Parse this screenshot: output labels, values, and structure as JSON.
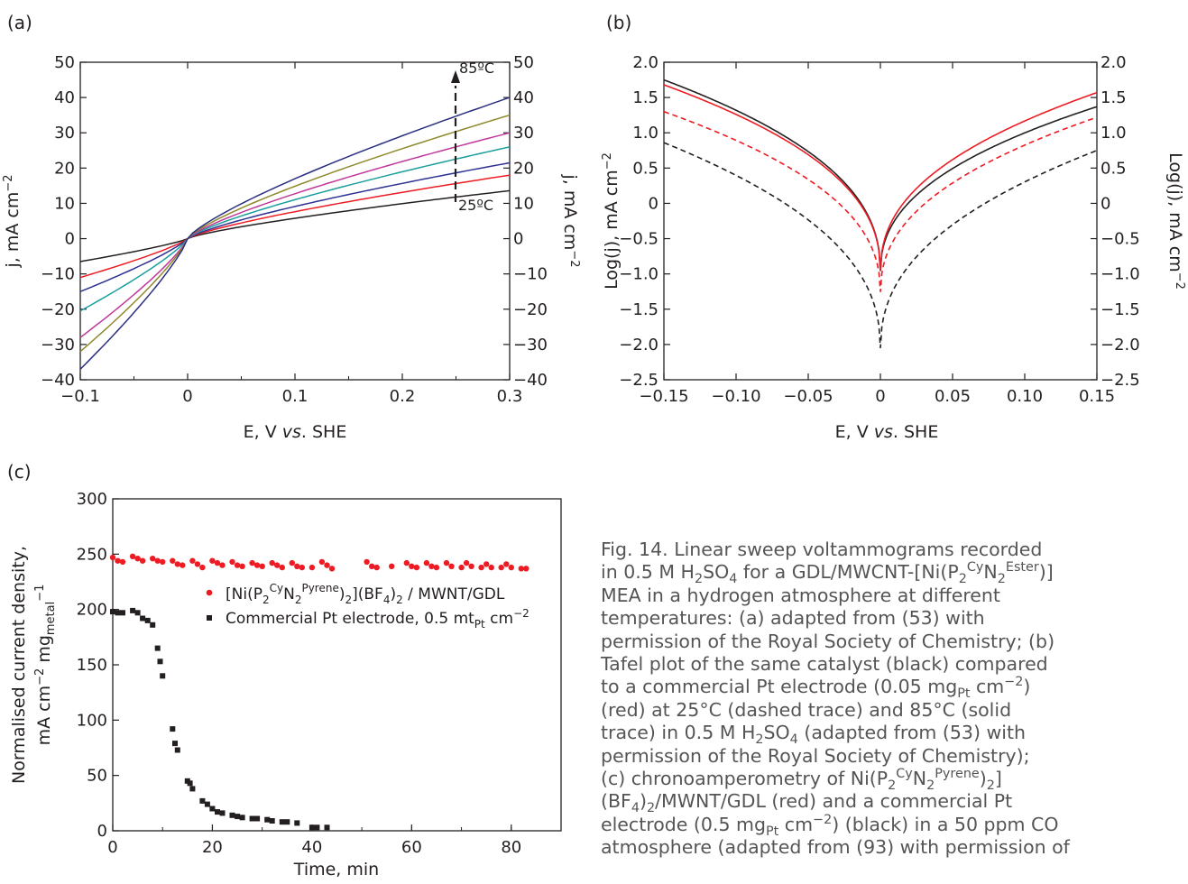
{
  "chart_data": [
    {
      "type": "line",
      "panel_label": "(a)",
      "xlabel": "E, V vs. SHE",
      "ylabel_left": "j, mA cm−2",
      "ylabel_right": "j, mA cm−2",
      "xlim": [
        -0.1,
        0.3
      ],
      "ylim": [
        -40,
        50
      ],
      "xticks": [
        "−0.1",
        "0",
        "0.1",
        "0.2",
        "0.3"
      ],
      "yticks": [
        "50",
        "40",
        "30",
        "20",
        "10",
        "0",
        "−10",
        "−20",
        "−30",
        "−40"
      ],
      "annotations": {
        "top": "85ºC",
        "bottom": "25ºC",
        "arrow_x": 0.25
      },
      "series": [
        {
          "color": "#231f20",
          "values_at_xmin": -6.5,
          "values_at_xmax": 13.6
        },
        {
          "color": "#ed1c24",
          "values_at_xmin": -11,
          "values_at_xmax": 18
        },
        {
          "color": "#2e3192",
          "values_at_xmin": -15,
          "values_at_xmax": 21.5
        },
        {
          "color": "#1a9e9e",
          "values_at_xmin": -20.5,
          "values_at_xmax": 26
        },
        {
          "color": "#c1399b",
          "values_at_xmin": -28,
          "values_at_xmax": 30
        },
        {
          "color": "#8e8a2c",
          "values_at_xmin": -32,
          "values_at_xmax": 35
        },
        {
          "color": "#2b2f80",
          "values_at_xmin": -37,
          "values_at_xmax": 40
        }
      ]
    },
    {
      "type": "line",
      "panel_label": "(b)",
      "xlabel": "E, V vs. SHE",
      "ylabel_left": "Log(j), mA cm−2",
      "ylabel_right": "Log(j), mA cm−2",
      "xlim": [
        -0.15,
        0.15
      ],
      "ylim": [
        -2.5,
        2.0
      ],
      "xticks": [
        "−0.15",
        "−0.10",
        "−0.05",
        "0",
        "0.05",
        "0.10",
        "0.15"
      ],
      "yticks": [
        "2.0",
        "1.5",
        "1.0",
        "0.5",
        "0",
        "−0.5",
        "−1.0",
        "−1.5",
        "−2.0",
        "−2.5"
      ],
      "series": [
        {
          "color": "#231f20",
          "style": "solid",
          "left_end": 1.75,
          "right_end": 1.37,
          "min": -1.0
        },
        {
          "color": "#ed1c24",
          "style": "solid",
          "left_end": 1.68,
          "right_end": 1.57,
          "min": -1.0
        },
        {
          "color": "#ed1c24",
          "style": "dashed",
          "left_end": 1.3,
          "right_end": 1.22,
          "min": -1.3
        },
        {
          "color": "#231f20",
          "style": "dashed",
          "left_end": 0.86,
          "right_end": 0.75,
          "min": -2.1
        }
      ]
    },
    {
      "type": "scatter",
      "panel_label": "(c)",
      "xlabel": "Time, min",
      "ylabel_line1": "Normalised current density,",
      "ylabel_line2": "mA cm−2 mgmetal−1",
      "xlim": [
        0,
        90
      ],
      "ylim": [
        0,
        300
      ],
      "xticks": [
        "0",
        "20",
        "40",
        "60",
        "80"
      ],
      "yticks": [
        "300",
        "250",
        "200",
        "150",
        "100",
        "50",
        "0"
      ],
      "legend": [
        "[Ni(P2CyN2Pyrene)2](BF4)2 / MWNT/GDL",
        "Commercial Pt electrode, 0.5 mtPt cm−2"
      ],
      "series": [
        {
          "color": "#ed1c24",
          "marker": "circle",
          "x": [
            0,
            1,
            2,
            4,
            5,
            6,
            8,
            9,
            10,
            12,
            13,
            14,
            16,
            17,
            18,
            20,
            21,
            22,
            24,
            25,
            26,
            28,
            29,
            30,
            32,
            33,
            34,
            36,
            37,
            38,
            40,
            42,
            43,
            44,
            51,
            52,
            53,
            56,
            59,
            60,
            61,
            63,
            64,
            65,
            67,
            68,
            70,
            71,
            72,
            74,
            75,
            76,
            78,
            79,
            80,
            82,
            83
          ],
          "y": [
            247,
            244,
            243,
            248,
            246,
            244,
            246,
            244,
            243,
            244,
            241,
            240,
            244,
            241,
            238,
            244,
            242,
            240,
            243,
            240,
            239,
            242,
            240,
            239,
            242,
            240,
            238,
            242,
            239,
            238,
            238,
            243,
            240,
            237,
            243,
            239,
            238,
            239,
            242,
            239,
            238,
            242,
            239,
            238,
            242,
            239,
            238,
            242,
            239,
            238,
            241,
            238,
            238,
            241,
            238,
            237,
            237
          ]
        },
        {
          "color": "#231f20",
          "marker": "square",
          "x": [
            0,
            1,
            2,
            4,
            5,
            6,
            7,
            8,
            9,
            9.5,
            10,
            12,
            12.5,
            13,
            15,
            15.5,
            16,
            18,
            19,
            20,
            21,
            22,
            24,
            25,
            26,
            28,
            29,
            31,
            32,
            34,
            35,
            37,
            40,
            41,
            43
          ],
          "y": [
            198,
            197,
            197,
            199,
            197,
            192,
            190,
            186,
            165,
            153,
            140,
            92,
            79,
            73,
            45,
            43,
            38,
            27,
            24,
            20,
            17,
            16,
            14,
            13,
            12,
            11,
            11,
            10,
            9,
            8,
            8,
            7,
            3,
            3,
            3
          ]
        }
      ]
    }
  ],
  "caption": {
    "fig": "Fig. 14.",
    "l1b": "Linear sweep voltammograms recorded",
    "l2a": "in 0.5 M H",
    "l2b": "SO",
    "l2c": " for a GDL/MWCNT-[Ni(P",
    "l2d": "N",
    "l2e": ")]",
    "l3": "MEA in a hydrogen atmosphere at different",
    "l4": "temperatures: (a) adapted from (53) with",
    "l5": "permission of the Royal Society of Chemistry; (b)",
    "l6": "Tafel plot of the same catalyst (black) compared",
    "l7a": "to a commercial Pt electrode (0.05 mg",
    "l7b": " cm",
    "l7c": ")",
    "l8": "(red) at 25°C (dashed trace) and 85°C (solid",
    "l9a": "trace) in 0.5 M H",
    "l9b": "SO",
    "l9c": " (adapted from (53) with",
    "l10": "permission of the Royal Society of Chemistry);",
    "l11a": "(c) chronoamperometry of Ni(P",
    "l11b": "N",
    "l11c": ")",
    "l12": "(BF4)2/MWNT/GDL (red) and a commercial Pt",
    "l13a": "electrode (0.5 mg",
    "l13b": " cm",
    "l13c": ") (black) in a 50 ppm CO",
    "l14": "atmosphere (adapted from (93) with permission of",
    "s2": "2",
    "s4": "4",
    "cy": "Cy",
    "ester": "Ester",
    "pyrene": "Pyrene",
    "pt": "Pt",
    "m2": "−2"
  }
}
